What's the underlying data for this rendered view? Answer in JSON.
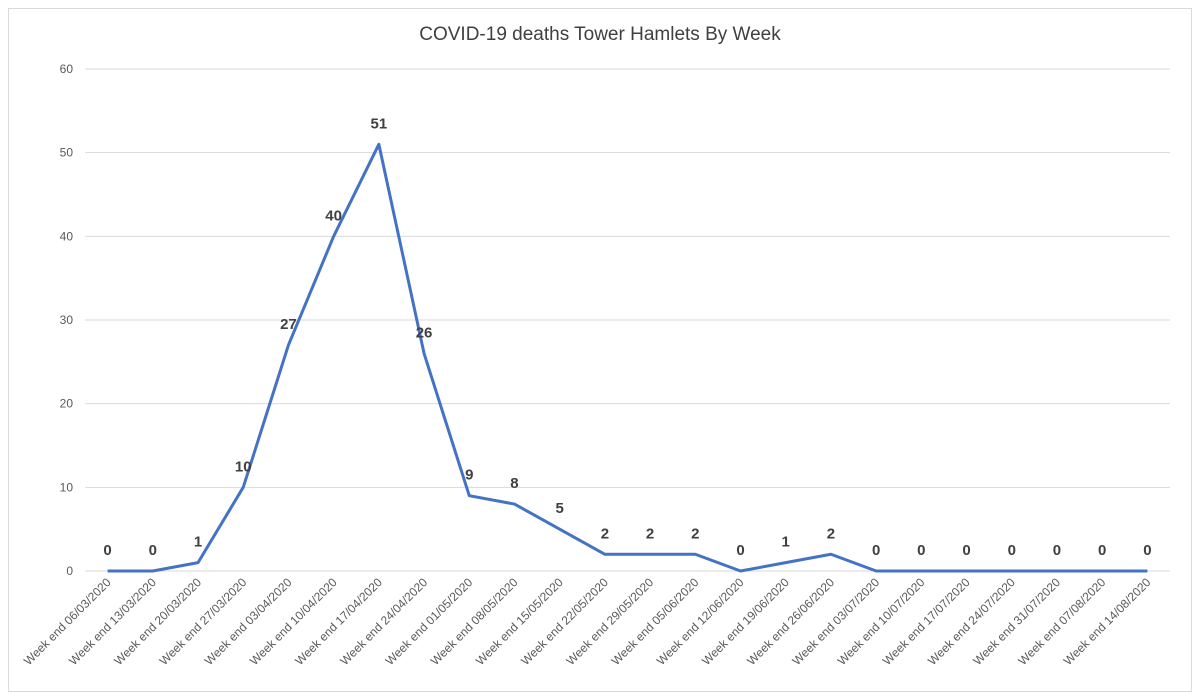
{
  "chart_data": {
    "type": "line",
    "title": "COVID-19 deaths Tower Hamlets By Week",
    "xlabel": "",
    "ylabel": "",
    "ylim": [
      0,
      60
    ],
    "yticks": [
      0,
      10,
      20,
      30,
      40,
      50,
      60
    ],
    "grid": true,
    "categories": [
      "Week end 06/03/2020",
      "Week end 13/03/2020",
      "Week end 20/03/2020",
      "Week end 27/03/2020",
      "Week end 03/04/2020",
      "Week end 10/04/2020",
      "Week end 17/04/2020",
      "Week end 24/04/2020",
      "Week end 01/05/2020",
      "Week end 08/05/2020",
      "Week end 15/05/2020",
      "Week end 22/05/2020",
      "Week end 29/05/2020",
      "Week end 05/06/2020",
      "Week end 12/06/2020",
      "Week end 19/06/2020",
      "Week end 26/06/2020",
      "Week end 03/07/2020",
      "Week end 10/07/2020",
      "Week end 17/07/2020",
      "Week end 24/07/2020",
      "Week end 31/07/2020",
      "Week end 07/08/2020",
      "Week end 14/08/2020"
    ],
    "series": [
      {
        "values": [
          0,
          0,
          1,
          10,
          27,
          40,
          51,
          26,
          9,
          8,
          5,
          2,
          2,
          2,
          0,
          1,
          2,
          0,
          0,
          0,
          0,
          0,
          0,
          0
        ],
        "color": "#4472c4"
      }
    ]
  }
}
